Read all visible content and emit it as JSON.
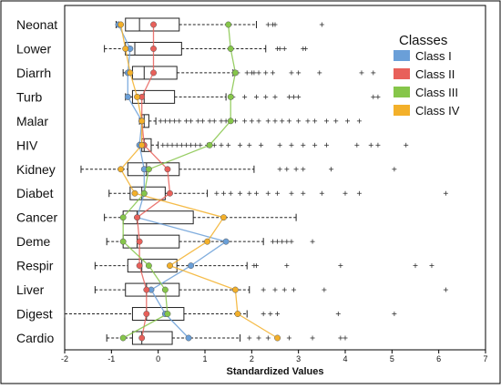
{
  "chart_data": {
    "type": "boxplot",
    "xlabel": "Standardized Values",
    "xlim": [
      -2,
      7
    ],
    "xticks": [
      "-2",
      "-1",
      "0",
      "1",
      "2",
      "3",
      "4",
      "5",
      "6",
      "7"
    ],
    "categories": [
      "Neonat",
      "Lower",
      "Diarrh",
      "Turb",
      "Malar",
      "HIV",
      "Kidney",
      "Diabet",
      "Cancer",
      "Deme",
      "Respir",
      "Liver",
      "Digest",
      "Cardio"
    ],
    "boxes": [
      {
        "category": "Neonat",
        "whisker_low": -0.9,
        "q1": -0.7,
        "median": -0.4,
        "q3": 0.45,
        "whisker_high": 2.1,
        "outliers": [
          2.35,
          2.45,
          2.5,
          3.5
        ]
      },
      {
        "category": "Lower",
        "whisker_low": -1.15,
        "q1": -0.7,
        "median": -0.5,
        "q3": 0.5,
        "whisker_high": 2.3,
        "outliers": [
          2.55,
          2.6,
          2.7,
          3.1,
          3.15
        ]
      },
      {
        "category": "Diarrh",
        "whisker_low": -0.75,
        "q1": -0.55,
        "median": -0.3,
        "q3": 0.4,
        "whisker_high": 1.6,
        "outliers": [
          1.7,
          1.9,
          2.0,
          2.05,
          2.15,
          2.3,
          2.45,
          2.85,
          3.0,
          3.45,
          4.35,
          4.6
        ]
      },
      {
        "category": "Turb",
        "whisker_low": -0.7,
        "q1": -0.55,
        "median": -0.3,
        "q3": 0.35,
        "whisker_high": 1.45,
        "outliers": [
          1.6,
          1.85,
          2.1,
          2.3,
          2.5,
          2.8,
          2.9,
          3.0,
          4.6,
          4.7
        ]
      },
      {
        "category": "Malar",
        "whisker_low": -0.4,
        "q1": -0.35,
        "median": -0.3,
        "q3": -0.2,
        "whisker_high": -0.05,
        "outliers": [
          0.05,
          0.15,
          0.25,
          0.35,
          0.45,
          0.6,
          0.7,
          0.85,
          0.95,
          1.1,
          1.2,
          1.35,
          1.45,
          1.65,
          1.85,
          2.0,
          2.15,
          2.35,
          2.5,
          2.65,
          2.8,
          3.0,
          3.2,
          3.35,
          3.6,
          3.8,
          4.05,
          4.3
        ]
      },
      {
        "category": "HIV",
        "whisker_low": -0.4,
        "q1": -0.35,
        "median": -0.3,
        "q3": -0.15,
        "whisker_high": 0.0,
        "outliers": [
          0.1,
          0.2,
          0.3,
          0.4,
          0.5,
          0.6,
          0.7,
          0.8,
          0.9,
          1.05,
          1.2,
          1.35,
          1.5,
          1.75,
          1.95,
          2.2,
          2.6,
          2.85,
          3.1,
          3.35,
          3.6,
          4.25,
          4.55,
          4.7,
          5.3
        ]
      },
      {
        "category": "Kidney",
        "whisker_low": -1.65,
        "q1": -0.65,
        "median": -0.25,
        "q3": 0.45,
        "whisker_high": 2.05,
        "outliers": [
          2.6,
          2.75,
          2.95,
          3.1,
          3.7,
          5.05
        ]
      },
      {
        "category": "Diabet",
        "whisker_low": -1.05,
        "q1": -0.6,
        "median": -0.35,
        "q3": 0.15,
        "whisker_high": 1.05,
        "outliers": [
          1.25,
          1.4,
          1.55,
          1.75,
          1.95,
          2.1,
          2.35,
          2.55,
          2.85,
          3.1,
          3.5,
          4.0,
          4.3,
          6.15
        ]
      },
      {
        "category": "Cancer",
        "whisker_low": -1.15,
        "q1": -0.75,
        "median": -0.45,
        "q3": 0.75,
        "whisker_high": 2.95,
        "outliers": []
      },
      {
        "category": "Deme",
        "whisker_low": -1.1,
        "q1": -0.75,
        "median": -0.45,
        "q3": 0.45,
        "whisker_high": 2.25,
        "outliers": [
          2.45,
          2.55,
          2.65,
          2.75,
          2.85,
          3.3
        ]
      },
      {
        "category": "Respir",
        "whisker_low": -1.35,
        "q1": -0.65,
        "median": -0.35,
        "q3": 0.4,
        "whisker_high": 1.9,
        "outliers": [
          2.05,
          2.1,
          2.75,
          3.9,
          5.5,
          5.85
        ]
      },
      {
        "category": "Liver",
        "whisker_low": -1.35,
        "q1": -0.7,
        "median": -0.25,
        "q3": 0.45,
        "whisker_high": 1.95,
        "outliers": [
          2.25,
          2.5,
          2.7,
          2.9,
          3.55,
          6.15
        ]
      },
      {
        "category": "Digest",
        "whisker_low": -2.0,
        "q1": -0.55,
        "median": -0.25,
        "q3": 0.55,
        "whisker_high": 1.9,
        "outliers": [
          2.25,
          2.4,
          2.55,
          3.85,
          5.05
        ]
      },
      {
        "category": "Cardio",
        "whisker_low": -1.1,
        "q1": -0.55,
        "median": -0.35,
        "q3": 0.3,
        "whisker_high": 1.75,
        "outliers": [
          1.95,
          2.15,
          2.35,
          2.8,
          3.3,
          3.9,
          4.0
        ]
      }
    ],
    "series": [
      {
        "name": "Class I",
        "color": "#6a9fd8",
        "values": [
          -0.85,
          -0.6,
          -0.65,
          -0.65,
          -0.35,
          -0.4,
          -0.3,
          -0.3,
          -0.45,
          1.45,
          0.7,
          -0.15,
          0.15,
          0.65
        ]
      },
      {
        "name": "Class II",
        "color": "#e8605a",
        "values": [
          -0.1,
          -0.1,
          -0.1,
          -0.35,
          -0.35,
          -0.3,
          0.2,
          0.25,
          -0.45,
          -0.4,
          -0.4,
          -0.25,
          -0.25,
          -0.35
        ]
      },
      {
        "name": "Class III",
        "color": "#86c64a",
        "values": [
          1.5,
          1.55,
          1.65,
          1.55,
          1.55,
          1.1,
          -0.2,
          -0.3,
          -0.75,
          -0.75,
          -0.2,
          0.15,
          0.2,
          -0.75
        ]
      },
      {
        "name": "Class IV",
        "color": "#f3b02a",
        "values": [
          -0.8,
          -0.7,
          -0.6,
          -0.45,
          -0.35,
          -0.35,
          -0.8,
          -0.5,
          1.4,
          1.05,
          0.25,
          1.65,
          1.7,
          2.55
        ]
      }
    ],
    "legend": {
      "title": "Classes",
      "position": "top-right"
    },
    "grid": false
  }
}
